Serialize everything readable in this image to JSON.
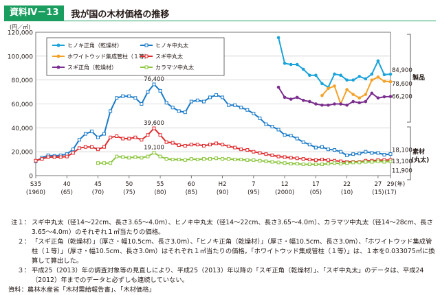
{
  "header": {
    "badge": "資料Ⅳ－13",
    "title": "我が国の木材価格の推移"
  },
  "chart_data": {
    "type": "line",
    "unit_label": "(円／㎥)",
    "ylim": [
      0,
      120000
    ],
    "y_ticks": [
      0,
      20000,
      40000,
      60000,
      80000,
      100000,
      120000
    ],
    "y_tick_labels": [
      "0",
      "20,000",
      "40,000",
      "60,000",
      "80,000",
      "100,000",
      "120,000"
    ],
    "x_range": [
      1960,
      2017
    ],
    "x_ticks": [
      {
        "year": 1960,
        "top": "S35",
        "bottom": "(1960)"
      },
      {
        "year": 1965,
        "top": "40",
        "bottom": "(65)"
      },
      {
        "year": 1970,
        "top": "45",
        "bottom": "(70)"
      },
      {
        "year": 1975,
        "top": "50",
        "bottom": "(75)"
      },
      {
        "year": 1980,
        "top": "55",
        "bottom": "(80)"
      },
      {
        "year": 1985,
        "top": "60",
        "bottom": "(85)"
      },
      {
        "year": 1990,
        "top": "H2",
        "bottom": "(90)"
      },
      {
        "year": 1995,
        "top": "7",
        "bottom": "(95)"
      },
      {
        "year": 2000,
        "top": "12",
        "bottom": "(2000)"
      },
      {
        "year": 2005,
        "top": "17",
        "bottom": "(05)"
      },
      {
        "year": 2010,
        "top": "22",
        "bottom": "(10)"
      },
      {
        "year": 2015,
        "top": "27",
        "bottom": "(15)"
      },
      {
        "year": 2017,
        "top": "29",
        "bottom": "(17)"
      }
    ],
    "x_axis_unit": "(年)",
    "series": [
      {
        "name": "ヒノキ正角（乾燥材）",
        "color": "#1aa3d9",
        "marker": "dot",
        "x": [
          1999,
          2000,
          2001,
          2002,
          2003,
          2004,
          2005,
          2006,
          2007,
          2008,
          2009,
          2010,
          2011,
          2012,
          2013,
          2014,
          2015,
          2016,
          2017
        ],
        "values": [
          115500,
          94000,
          93000,
          93000,
          89000,
          84000,
          84000,
          77000,
          74000,
          85000,
          84000,
          80000,
          80000,
          83000,
          81000,
          85000,
          96000,
          84500,
          84900
        ]
      },
      {
        "name": "ヒノキ中丸太",
        "color": "#1a7ac8",
        "marker": "square",
        "x": [
          1960,
          1961,
          1962,
          1963,
          1964,
          1965,
          1966,
          1967,
          1968,
          1969,
          1970,
          1971,
          1972,
          1973,
          1974,
          1975,
          1976,
          1977,
          1978,
          1979,
          1980,
          1981,
          1982,
          1983,
          1984,
          1985,
          1986,
          1987,
          1988,
          1989,
          1990,
          1991,
          1992,
          1993,
          1994,
          1995,
          1996,
          1997,
          1998,
          1999,
          2000,
          2001,
          2002,
          2003,
          2004,
          2005,
          2006,
          2007,
          2008,
          2009,
          2010,
          2011,
          2012,
          2013,
          2014,
          2015,
          2016,
          2017
        ],
        "values": [
          12000,
          15000,
          17000,
          16500,
          17000,
          18000,
          22000,
          30000,
          35000,
          37000,
          32000,
          35000,
          54000,
          65000,
          66500,
          66500,
          65000,
          60000,
          70000,
          76400,
          71000,
          61000,
          57000,
          54000,
          53000,
          62000,
          63000,
          62000,
          65500,
          67500,
          65500,
          59000,
          59000,
          57000,
          55000,
          52000,
          48000,
          43000,
          41000,
          38500,
          34000,
          33500,
          31000,
          28000,
          26000,
          23500,
          24000,
          22000,
          21500,
          20000,
          17000,
          18000,
          18500,
          20000,
          19000,
          19000,
          17500,
          18100
        ]
      },
      {
        "name": "ホワイトウッド集成管柱（１等）",
        "color": "#f3a229",
        "marker": "dot",
        "x": [
          2006,
          2007,
          2008,
          2009,
          2010,
          2011,
          2012,
          2013,
          2014,
          2015,
          2016,
          2017
        ],
        "values": [
          67000,
          73000,
          75000,
          60000,
          72000,
          68000,
          65000,
          68000,
          80000,
          82500,
          79000,
          78600
        ]
      },
      {
        "name": "スギ中丸太",
        "color": "#e02a2c",
        "marker": "square",
        "x": [
          1960,
          1961,
          1962,
          1963,
          1964,
          1965,
          1966,
          1967,
          1968,
          1969,
          1970,
          1971,
          1972,
          1973,
          1974,
          1975,
          1976,
          1977,
          1978,
          1979,
          1980,
          1981,
          1982,
          1983,
          1984,
          1985,
          1986,
          1987,
          1988,
          1989,
          1990,
          1991,
          1992,
          1993,
          1994,
          1995,
          1996,
          1997,
          1998,
          1999,
          2000,
          2001,
          2002,
          2003,
          2004,
          2005,
          2006,
          2007,
          2008,
          2009,
          2010,
          2011,
          2012,
          2013,
          2014,
          2015,
          2016,
          2017
        ],
        "values": [
          12500,
          14000,
          15500,
          15500,
          15500,
          16000,
          19000,
          23000,
          24000,
          24000,
          22000,
          24000,
          32000,
          33000,
          31000,
          31000,
          32000,
          30000,
          34000,
          39600,
          34000,
          28000,
          27500,
          25500,
          25000,
          26000,
          26000,
          25000,
          26000,
          27000,
          26000,
          24500,
          23500,
          22000,
          21500,
          20000,
          19000,
          18000,
          17000,
          16000,
          15500,
          15000,
          14500,
          14000,
          13500,
          13000,
          13500,
          13000,
          12500,
          12000,
          11500,
          11500,
          11500,
          12500,
          12500,
          13000,
          13000,
          13100
        ]
      },
      {
        "name": "スギ正角（乾燥材）",
        "color": "#7b2e8e",
        "marker": "dot",
        "x": [
          1999,
          2000,
          2001,
          2002,
          2003,
          2004,
          2005,
          2006,
          2007,
          2008,
          2009,
          2010,
          2011,
          2012,
          2013,
          2014,
          2015,
          2016,
          2017
        ],
        "values": [
          74000,
          65500,
          64000,
          65500,
          63000,
          62000,
          60000,
          59000,
          59000,
          60000,
          60000,
          59000,
          62000,
          61000,
          62000,
          69000,
          65000,
          66000,
          66200
        ]
      },
      {
        "name": "カラマツ中丸太",
        "color": "#8cc63f",
        "marker": "square",
        "x": [
          1970,
          1971,
          1972,
          1973,
          1974,
          1975,
          1976,
          1977,
          1978,
          1979,
          1980,
          1981,
          1982,
          1983,
          1984,
          1985,
          1986,
          1987,
          1988,
          1989,
          1990,
          1991,
          1992,
          1993,
          1994,
          1995,
          1996,
          1997,
          1998,
          1999,
          2000,
          2001,
          2002,
          2003,
          2004,
          2005,
          2006,
          2007,
          2008,
          2009,
          2010,
          2011,
          2012,
          2013,
          2014,
          2015,
          2016,
          2017
        ],
        "values": [
          10500,
          10500,
          10500,
          16000,
          15500,
          15000,
          15500,
          15000,
          16000,
          19100,
          16000,
          14000,
          13500,
          13500,
          13000,
          14000,
          13500,
          14000,
          14000,
          14500,
          14000,
          14000,
          13500,
          13500,
          13000,
          13000,
          12500,
          12000,
          11500,
          11000,
          10500,
          10000,
          10000,
          9500,
          9500,
          9500,
          9500,
          10000,
          10500,
          10000,
          10500,
          11000,
          11000,
          11500,
          11500,
          12000,
          11500,
          11900
        ]
      }
    ],
    "annotations": [
      {
        "text": "76,400",
        "year": 1979,
        "value": 76400
      },
      {
        "text": "39,600",
        "year": 1979,
        "value": 39600
      },
      {
        "text": "19,100",
        "year": 1979,
        "value": 19100
      }
    ],
    "end_labels": [
      "84,900",
      "78,600",
      "66,200",
      "18,100",
      "13,100",
      "11,900"
    ],
    "bracket_labels": [
      {
        "text": "製品"
      },
      {
        "text": "素材\n(丸太)"
      }
    ]
  },
  "notes": [
    {
      "label": "注１：",
      "text": "スギ中丸太（径14～22cm、長さ3.65～4.0m）、ヒノキ中丸太（径14～22cm、長さ3.65～4.0m）、カラマツ中丸太（径14～28cm、長さ3.65～4.0m）のそれぞれ１㎥当たりの価格。"
    },
    {
      "label": "２：",
      "text": "「スギ正角（乾燥材）」（厚さ・幅10.5cm、長さ3.0m）、「ヒノキ正角（乾燥材）」（厚さ・幅10.5cm、長さ3.0m）、「ホワイトウッド集成管柱（１等）」（厚さ・幅10.5cm、長さ3.0m）はそれぞれ１㎥当たりの価格。「ホワイトウッド集成管柱（１等）」は、１本を0.033075㎥に換算して算出した。"
    },
    {
      "label": "３：",
      "text": "平成25（2013）年の調査対象等の見直しにより、平成25（2013）年以降の「スギ正角（乾燥材）」、「スギ中丸太」のデータは、平成24（2012）年までのデータと必ずしも連続していない。"
    }
  ],
  "source": "資料：農林水産省「木材需給報告書」、「木材価格」"
}
